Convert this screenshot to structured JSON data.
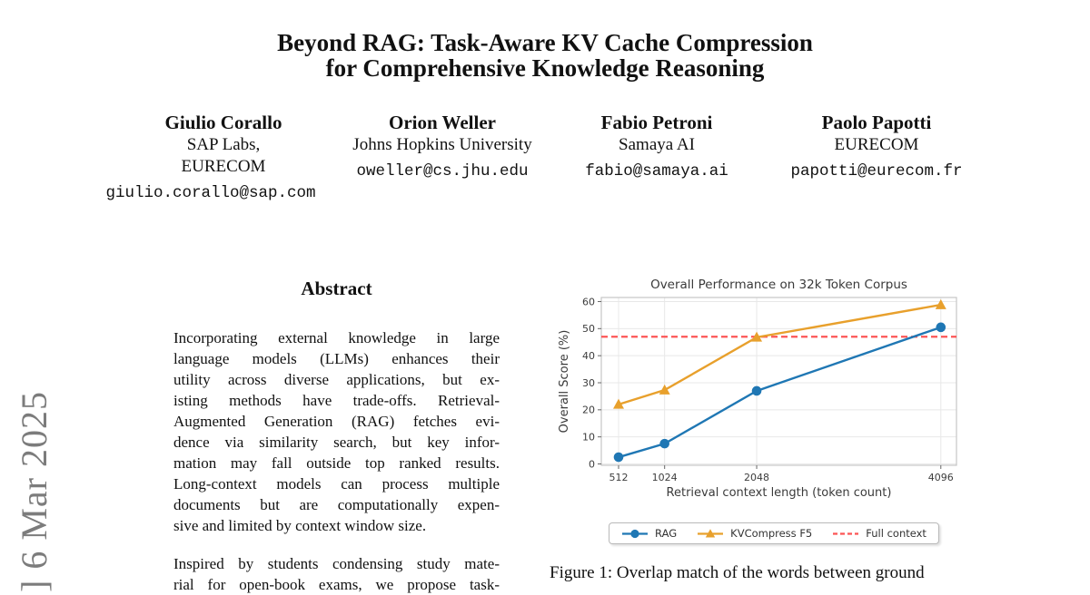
{
  "arxiv_stamp": {
    "text": "] 6 Mar 2025",
    "color": "#7c7c7c"
  },
  "title": {
    "line1": "Beyond RAG: Task-Aware KV Cache Compression",
    "line2": "for Comprehensive Knowledge Reasoning"
  },
  "authors": [
    {
      "name": "Giulio Corallo",
      "aff1": "SAP Labs,",
      "aff2": "EURECOM",
      "email": "giulio.corallo@sap.com"
    },
    {
      "name": "Orion Weller",
      "aff1": "Johns Hopkins University",
      "email": "oweller@cs.jhu.edu"
    },
    {
      "name": "Fabio Petroni",
      "aff1": "Samaya AI",
      "email": "fabio@samaya.ai"
    },
    {
      "name": "Paolo Papotti",
      "aff1": "EURECOM",
      "email": "papotti@eurecom.fr"
    }
  ],
  "abstract": {
    "heading": "Abstract",
    "para1_lines": [
      "Incorporating external knowledge in large",
      "language models (LLMs) enhances their",
      "utility across diverse applications, but ex-",
      "isting methods have trade-offs. Retrieval-",
      "Augmented Generation (RAG) fetches evi-",
      "dence via similarity search, but key infor-",
      "mation may fall outside top ranked results.",
      "Long-context models can process multiple",
      "documents but are computationally expen-",
      "sive and limited by context window size."
    ],
    "para2_lines": [
      "Inspired by students condensing study mate-",
      "rial for open-book exams, we propose task-"
    ]
  },
  "figure": {
    "caption": "Figure 1: Overlap match of the words between ground"
  },
  "chart_data": {
    "type": "line",
    "title": "Overall Performance on 32k Token Corpus",
    "xlabel": "Retrieval context length (token count)",
    "ylabel": "Overall Score (%)",
    "x": [
      512,
      1024,
      2048,
      4096
    ],
    "x_ticks": [
      "512",
      "1024",
      "2048",
      "4096"
    ],
    "y_ticks": [
      0,
      10,
      20,
      30,
      40,
      50,
      60
    ],
    "xlim": [
      320,
      4270
    ],
    "ylim": [
      -0.5,
      61.5
    ],
    "grid": true,
    "legend_position": "below",
    "series": [
      {
        "name": "RAG",
        "color": "#1f77b4",
        "marker": "circle",
        "values": [
          2.5,
          7.5,
          27,
          50.5
        ]
      },
      {
        "name": "KVCompress F5",
        "color": "#e8a02c",
        "marker": "triangle",
        "values": [
          22,
          27.3,
          46.8,
          58.8
        ]
      }
    ],
    "reference_line": {
      "name": "Full context",
      "color": "#fc5555",
      "style": "dashed",
      "value": 47
    }
  }
}
